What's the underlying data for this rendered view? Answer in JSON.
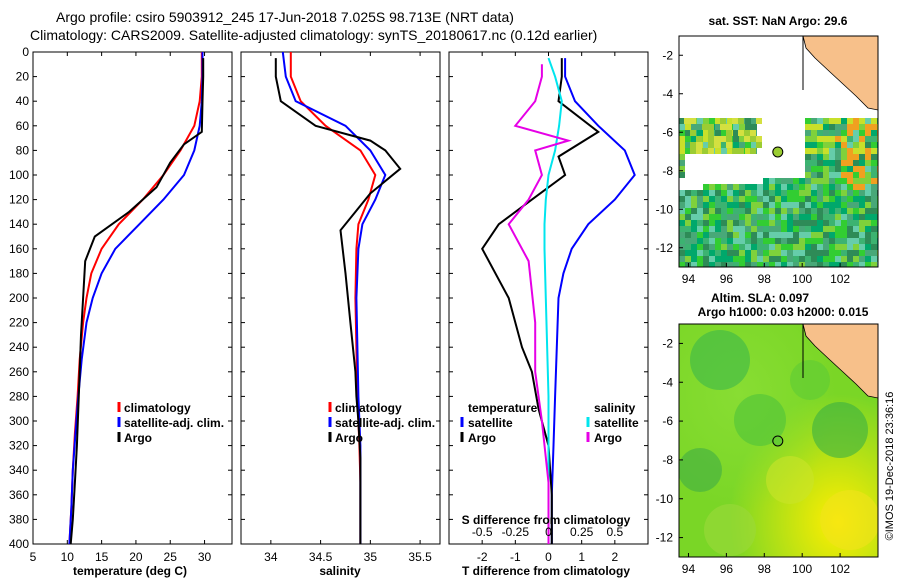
{
  "figure": {
    "title_line1": "Argo profile: csiro 5903912_245 17-Jun-2018 7.025S 98.713E (NRT data)",
    "title_line2": "Climatology: CARS2009. Satellite-adjusted climatology: synTS_20180617.nc (0.12d earlier)",
    "timestamp": "©IMOS 19-Dec-2018 23:36:16"
  },
  "colors": {
    "climatology": "#ff0000",
    "satellite": "#0000ff",
    "argo": "#000000",
    "sal_satellite": "#00e5ee",
    "sal_argo": "#e600e6",
    "land": "#f7c08a"
  },
  "chart_data": [
    {
      "type": "line",
      "name": "temperature-profile",
      "xlabel": "temperature (deg C)",
      "xlim": [
        5,
        34
      ],
      "ylim": [
        0,
        400
      ],
      "xticks": [
        "5",
        "10",
        "15",
        "20",
        "25",
        "30"
      ],
      "xtick_values": [
        5,
        10,
        15,
        20,
        25,
        30
      ],
      "yticks": [
        "0",
        "20",
        "40",
        "60",
        "80",
        "100",
        "120",
        "140",
        "160",
        "180",
        "200",
        "220",
        "240",
        "260",
        "280",
        "300",
        "320",
        "340",
        "360",
        "380",
        "400"
      ],
      "legend": [
        "climatology",
        "satellite-adj. clim.",
        "Argo"
      ],
      "series": [
        {
          "name": "climatology",
          "color": "#ff0000",
          "x": [
            29.6,
            29.6,
            29.3,
            28.5,
            26.5,
            24,
            21,
            17.5,
            15,
            13.5,
            12.8,
            12.3,
            11.8,
            11.5,
            11.1,
            10.8,
            10.6,
            10.3
          ],
          "y": [
            0,
            20,
            40,
            60,
            80,
            100,
            120,
            140,
            160,
            180,
            200,
            220,
            250,
            280,
            310,
            340,
            370,
            400
          ]
        },
        {
          "name": "satellite-adj. clim.",
          "color": "#0000ff",
          "x": [
            29.7,
            29.7,
            29.6,
            29.3,
            28.5,
            27,
            24,
            20.5,
            17,
            15,
            13.7,
            12.8,
            12.1,
            11.6,
            11.2,
            10.8,
            10.6,
            10.3
          ],
          "y": [
            0,
            20,
            40,
            60,
            80,
            100,
            120,
            140,
            160,
            180,
            200,
            220,
            250,
            280,
            310,
            340,
            370,
            400
          ]
        },
        {
          "name": "Argo",
          "color": "#000000",
          "x": [
            29.8,
            29.8,
            29.7,
            29.6,
            27,
            25,
            23,
            19,
            14,
            12.6,
            12.3,
            12,
            11.8,
            11.6,
            11.4,
            11.1,
            10.8,
            10.5
          ],
          "y": [
            5,
            20,
            40,
            65,
            75,
            90,
            110,
            130,
            150,
            170,
            200,
            230,
            260,
            290,
            320,
            350,
            380,
            400
          ]
        }
      ]
    },
    {
      "type": "line",
      "name": "salinity-profile",
      "xlabel": "salinity",
      "xlim": [
        33.7,
        35.7
      ],
      "ylim": [
        0,
        400
      ],
      "xticks": [
        "34",
        "34.5",
        "35",
        "35.5"
      ],
      "xtick_values": [
        34,
        34.5,
        35,
        35.5
      ],
      "legend": [
        "climatology",
        "satellite-adj. clim.",
        "Argo"
      ],
      "series": [
        {
          "name": "climatology",
          "color": "#ff0000",
          "x": [
            34.2,
            34.2,
            34.3,
            34.55,
            34.9,
            35.05,
            34.98,
            34.88,
            34.86,
            34.85,
            34.86,
            34.87,
            34.88,
            34.89,
            34.9,
            34.9,
            34.9
          ],
          "y": [
            0,
            20,
            40,
            60,
            80,
            100,
            120,
            140,
            160,
            200,
            240,
            280,
            300,
            320,
            350,
            380,
            400
          ]
        },
        {
          "name": "satellite-adj. clim.",
          "color": "#0000ff",
          "x": [
            34.12,
            34.15,
            34.25,
            34.75,
            35.0,
            35.15,
            35.05,
            34.92,
            34.88,
            34.86,
            34.87,
            34.88,
            34.89,
            34.9,
            34.9,
            34.9,
            34.9
          ],
          "y": [
            0,
            20,
            40,
            60,
            80,
            100,
            120,
            140,
            160,
            200,
            240,
            280,
            300,
            320,
            350,
            380,
            400
          ]
        },
        {
          "name": "Argo",
          "color": "#000000",
          "x": [
            34.05,
            34.05,
            34.1,
            34.45,
            35.0,
            35.15,
            35.3,
            35.0,
            34.85,
            34.7,
            34.75,
            34.8,
            34.85,
            34.86,
            34.88,
            34.9,
            34.9,
            34.9
          ],
          "y": [
            5,
            20,
            40,
            60,
            72,
            80,
            95,
            115,
            130,
            145,
            180,
            220,
            260,
            280,
            300,
            330,
            370,
            400
          ]
        }
      ]
    },
    {
      "type": "line",
      "name": "difference-profile",
      "xlabel": "T difference from climatology",
      "xlabel_top": "S difference from climatology",
      "xlim": [
        -3,
        3
      ],
      "ylim": [
        0,
        400
      ],
      "xticks": [
        "-2",
        "-1",
        "0",
        "1",
        "2"
      ],
      "xtick_values": [
        -2,
        -1,
        0,
        1,
        2
      ],
      "xticks_top": [
        "-0.5",
        "-0.25",
        "0",
        "0.25",
        "0.5"
      ],
      "legend": [
        "temperature",
        "satellite",
        "Argo",
        "salinity",
        "satellite",
        "Argo"
      ],
      "series": [
        {
          "name": "T satellite",
          "color": "#0000ff",
          "x": [
            0.5,
            0.5,
            0.8,
            1.5,
            2.3,
            2.6,
            2.0,
            1.2,
            0.7,
            0.45,
            0.3,
            0.25,
            0.2,
            0.15,
            0.1,
            0.1
          ],
          "y": [
            5,
            20,
            40,
            60,
            80,
            100,
            120,
            140,
            160,
            180,
            200,
            240,
            280,
            320,
            360,
            400
          ]
        },
        {
          "name": "T Argo",
          "color": "#000000",
          "x": [
            0.4,
            0.4,
            0.3,
            1.5,
            0.3,
            0.5,
            -0.5,
            -1.5,
            -2.0,
            -1.2,
            -0.8,
            -0.5,
            -0.3,
            0.0,
            0.1,
            0.1
          ],
          "y": [
            5,
            20,
            40,
            65,
            85,
            100,
            120,
            140,
            160,
            200,
            240,
            260,
            290,
            320,
            360,
            400
          ]
        },
        {
          "name": "S satellite",
          "color": "#00e5ee",
          "x": [
            0.0,
            0.05,
            0.1,
            0.08,
            0.05,
            0.0,
            -0.02,
            -0.03,
            -0.03,
            -0.02,
            0.0,
            0.0,
            0.0
          ],
          "y": [
            5,
            20,
            40,
            60,
            80,
            100,
            120,
            140,
            160,
            200,
            280,
            340,
            400
          ]
        },
        {
          "name": "S Argo",
          "color": "#e600e6",
          "x": [
            -0.05,
            -0.05,
            -0.1,
            -0.25,
            0.15,
            -0.1,
            -0.05,
            -0.15,
            -0.3,
            -0.15,
            -0.1,
            -0.1,
            -0.05,
            0.0,
            0.0
          ],
          "y": [
            10,
            20,
            40,
            60,
            72,
            80,
            100,
            120,
            140,
            170,
            220,
            260,
            300,
            350,
            400
          ]
        }
      ]
    },
    {
      "type": "heatmap",
      "name": "sst-map",
      "title": "sat. SST: NaN Argo: 29.6",
      "xlim": [
        93.5,
        104
      ],
      "ylim": [
        -13,
        -1
      ],
      "xticks": [
        "94",
        "96",
        "98",
        "100",
        "102"
      ],
      "xtick_values": [
        94,
        96,
        98,
        100,
        102
      ],
      "yticks": [
        "-2",
        "-4",
        "-6",
        "-8",
        "-10",
        "-12"
      ],
      "ytick_values": [
        -2,
        -4,
        -6,
        -8,
        -10,
        -12
      ],
      "argo_position": [
        98.713,
        -7.025
      ]
    },
    {
      "type": "heatmap",
      "name": "sla-map",
      "title_line1": "Altim. SLA: 0.097",
      "title_line2": "Argo h1000: 0.03 h2000: 0.015",
      "xlim": [
        93.5,
        104
      ],
      "ylim": [
        -13,
        -1
      ],
      "xticks": [
        "94",
        "96",
        "98",
        "100",
        "102"
      ],
      "xtick_values": [
        94,
        96,
        98,
        100,
        102
      ],
      "yticks": [
        "-2",
        "-4",
        "-6",
        "-8",
        "-10",
        "-12"
      ],
      "ytick_values": [
        -2,
        -4,
        -6,
        -8,
        -10,
        -12
      ],
      "argo_position": [
        98.713,
        -7.025
      ]
    }
  ]
}
